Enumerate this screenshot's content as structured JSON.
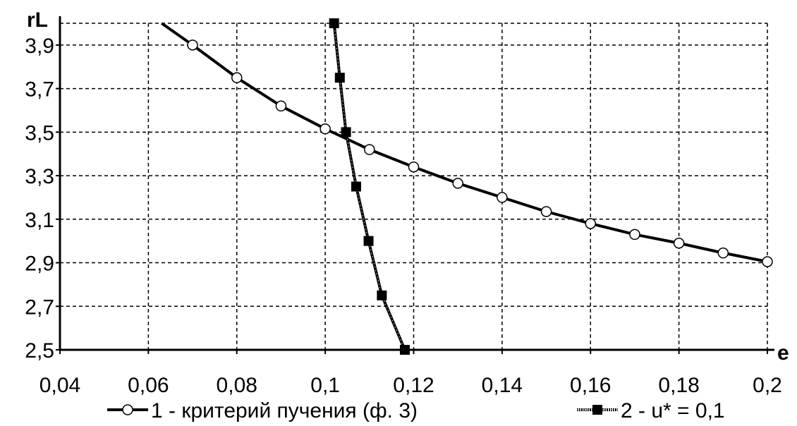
{
  "chart_data": {
    "type": "line",
    "title": "",
    "xlabel": "e",
    "ylabel": "rL",
    "xlim": [
      0.04,
      0.2
    ],
    "ylim": [
      2.5,
      4.0
    ],
    "xticks": [
      {
        "value": 0.04,
        "label": "0,04"
      },
      {
        "value": 0.06,
        "label": "0,06"
      },
      {
        "value": 0.08,
        "label": "0,08"
      },
      {
        "value": 0.1,
        "label": "0,1"
      },
      {
        "value": 0.12,
        "label": "0,12"
      },
      {
        "value": 0.14,
        "label": "0,14"
      },
      {
        "value": 0.16,
        "label": "0,16"
      },
      {
        "value": 0.18,
        "label": "0,18"
      },
      {
        "value": 0.2,
        "label": "0,2"
      }
    ],
    "yticks": [
      {
        "value": 2.5,
        "label": "2,5"
      },
      {
        "value": 2.7,
        "label": "2,7"
      },
      {
        "value": 2.9,
        "label": "2,9"
      },
      {
        "value": 3.1,
        "label": "3,1"
      },
      {
        "value": 3.3,
        "label": "3,3"
      },
      {
        "value": 3.5,
        "label": "3,5"
      },
      {
        "value": 3.7,
        "label": "3,7"
      },
      {
        "value": 3.9,
        "label": "3,9"
      }
    ],
    "grid": true,
    "legend_position": "bottom",
    "series": [
      {
        "name": "1 - критерий пучения (ф. 3)",
        "marker": "open-circle",
        "color": "#000000",
        "line_start": {
          "x": 0.063,
          "y": 4.0
        },
        "x": [
          0.07,
          0.08,
          0.09,
          0.1,
          0.11,
          0.12,
          0.13,
          0.14,
          0.15,
          0.16,
          0.17,
          0.18,
          0.19,
          0.2
        ],
        "y": [
          3.9,
          3.75,
          3.62,
          3.515,
          3.42,
          3.34,
          3.265,
          3.2,
          3.135,
          3.08,
          3.03,
          2.99,
          2.945,
          2.905
        ]
      },
      {
        "name": "2 - u* = 0,1",
        "marker": "filled-square",
        "color": "#000000",
        "x": [
          0.102,
          0.1033,
          0.1047,
          0.107,
          0.1098,
          0.1128,
          0.118
        ],
        "y": [
          4.0,
          3.75,
          3.5,
          3.25,
          3.0,
          2.75,
          2.5
        ]
      }
    ]
  }
}
